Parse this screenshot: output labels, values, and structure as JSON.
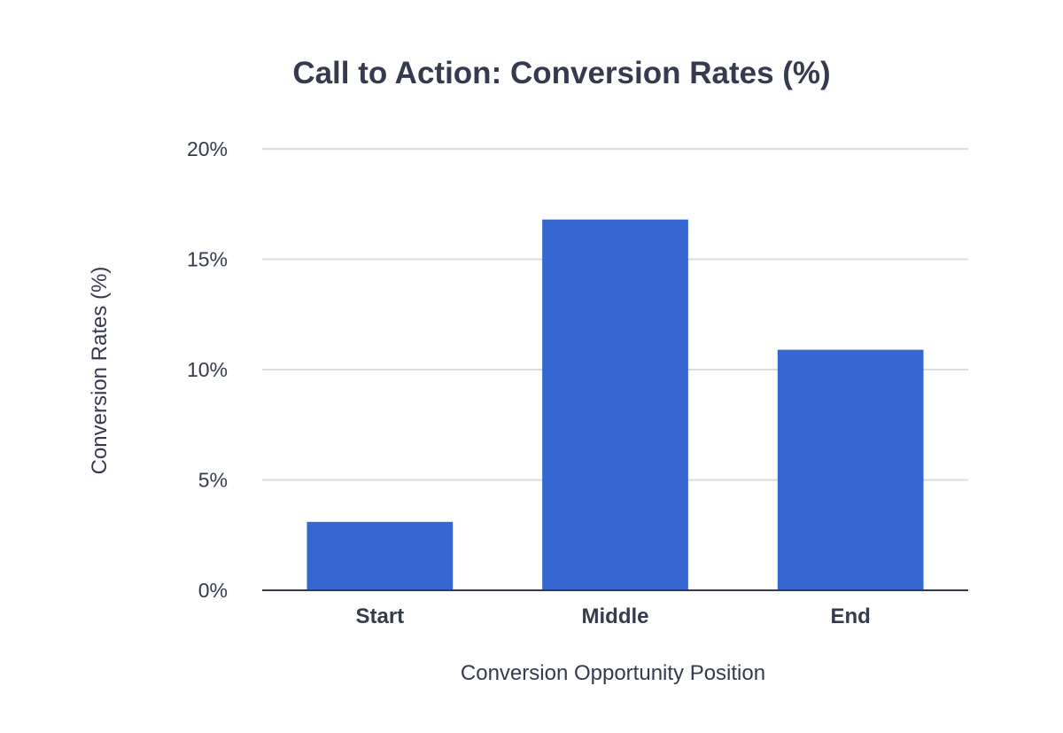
{
  "chart_data": {
    "type": "bar",
    "title": "Call to Action: Conversion Rates (%)",
    "xlabel": "Conversion Opportunity Position",
    "ylabel": "Conversion Rates (%)",
    "categories": [
      "Start",
      "Middle",
      "End"
    ],
    "values": [
      3.1,
      16.8,
      10.9
    ],
    "ylim": [
      0,
      20
    ],
    "yticks": [
      0,
      5,
      10,
      15,
      20
    ],
    "ytick_labels": [
      "0%",
      "5%",
      "10%",
      "15%",
      "20%"
    ],
    "grid": true,
    "legend": "none",
    "colors": {
      "bar": "#3667d0",
      "text": "#353a4e",
      "grid": "#dcdcdc",
      "axis": "#353a4e"
    }
  }
}
